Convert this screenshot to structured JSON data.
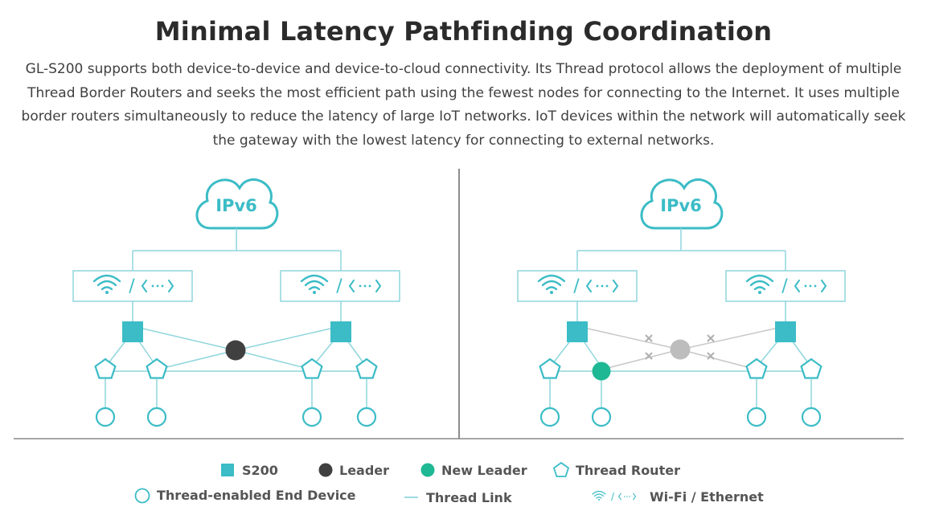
{
  "header": {
    "title": "Minimal Latency Pathfinding Coordination",
    "description": "GL-S200 supports both device-to-device and device-to-cloud connectivity. Its Thread protocol allows the deployment of multiple Thread Border Routers and seeks the most efficient path using the fewest nodes for connecting to the Internet. It uses multiple border routers simultaneously to reduce the latency of large IoT networks. IoT devices within the network will automatically seek the gateway with the lowest latency for connecting to external networks."
  },
  "diagram": {
    "cloud_label": "IPv6",
    "separator": "/",
    "ethernet_glyph": "‹···›"
  },
  "legend": {
    "s200": "S200",
    "leader": "Leader",
    "new_leader": "New Leader",
    "thread_router": "Thread Router",
    "end_device": "Thread-enabled End Device",
    "thread_link": "Thread Link",
    "wifi_ethernet": "Wi-Fi / Ethernet"
  },
  "colors": {
    "teal": "#3bbcc6",
    "leader": "#404040",
    "new_leader": "#1fb894",
    "inactive": "#bdbdbd",
    "line": "#8fd6dc"
  }
}
